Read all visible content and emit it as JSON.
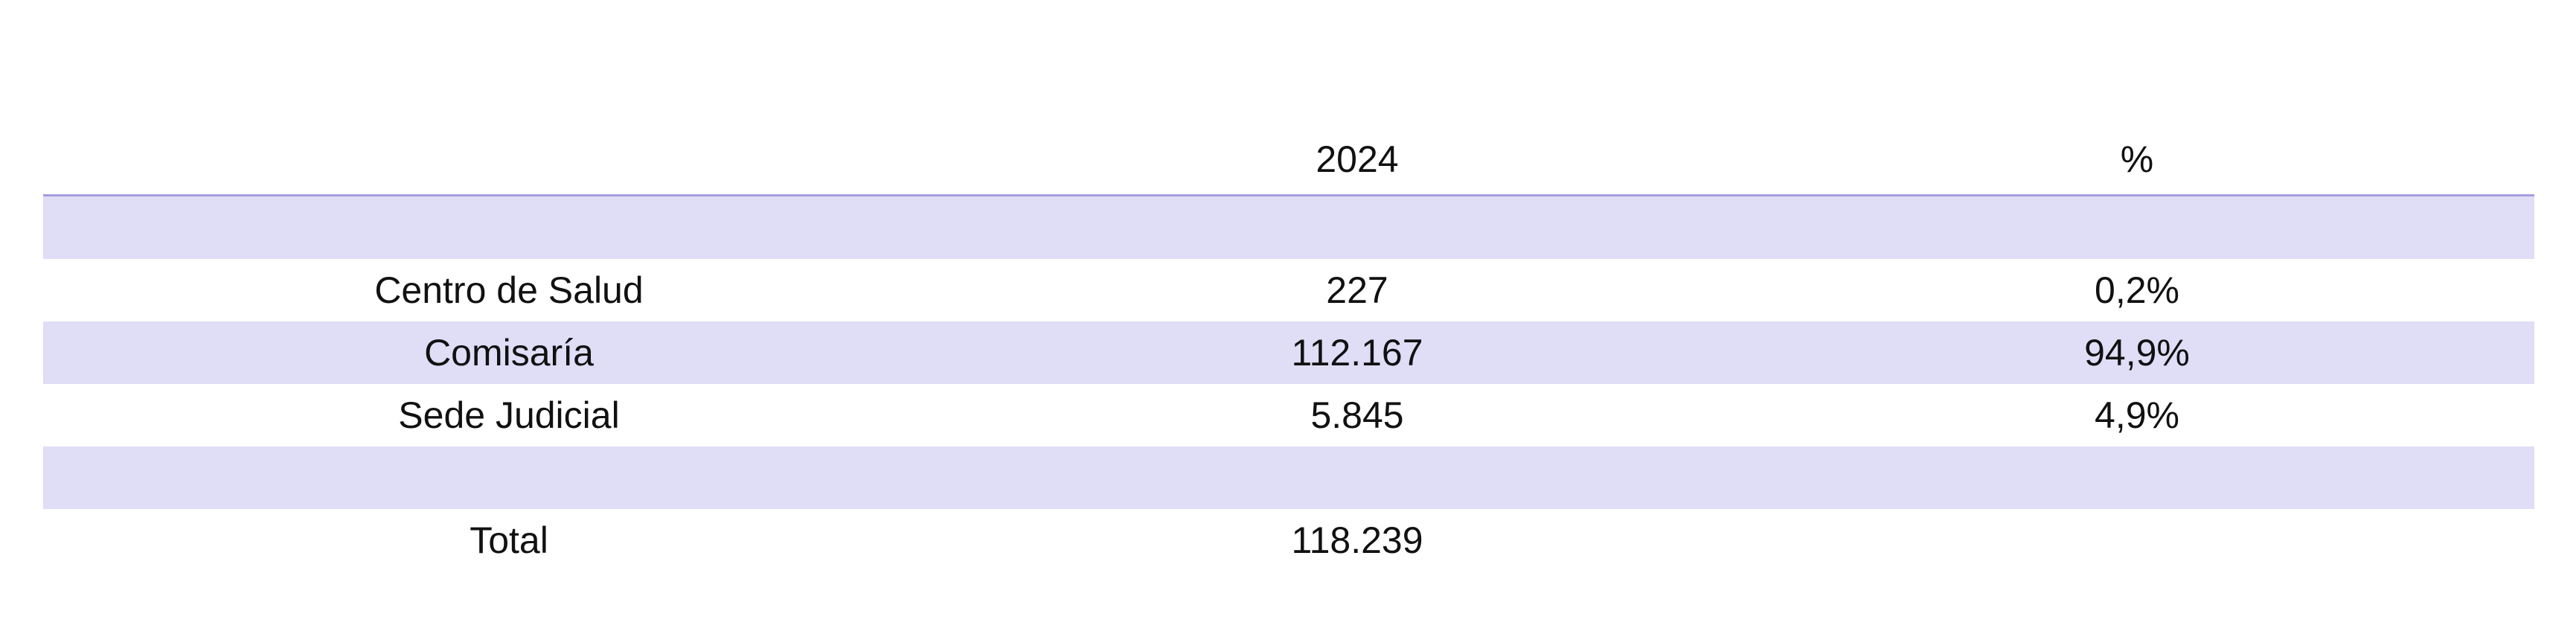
{
  "table": {
    "header": [
      "2024",
      "%"
    ],
    "rows": [
      [
        "Centro de Salud",
        "227",
        "0,2%"
      ],
      [
        "Comisaría",
        "112.167",
        "94,9%"
      ],
      [
        "Sede Judicial",
        "5.845",
        "4,9%"
      ]
    ],
    "total": [
      "Total",
      "118.239"
    ]
  }
}
